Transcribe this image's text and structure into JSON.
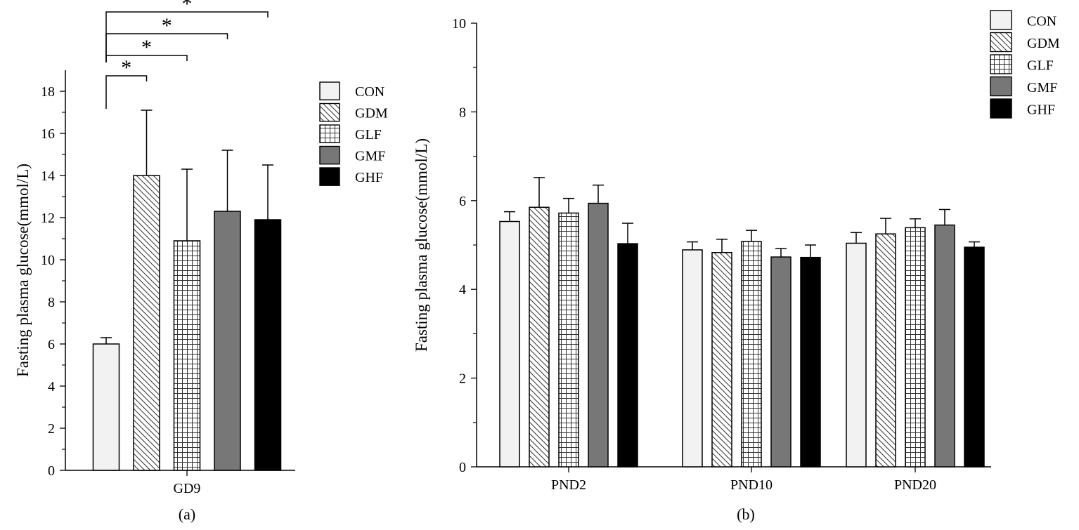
{
  "chart_data": [
    {
      "panel_label": "(a)",
      "type": "bar",
      "ylabel": "Fasting plasma glucose(mmol/L)",
      "xlabel": "",
      "ylim": [
        0,
        19
      ],
      "yticks": [
        0,
        2,
        4,
        6,
        8,
        10,
        12,
        14,
        16,
        18
      ],
      "categories": [
        "GD9"
      ],
      "legend_position": "right",
      "series": [
        {
          "name": "CON",
          "pattern": "light",
          "values": [
            6.0
          ],
          "errors": [
            0.3
          ]
        },
        {
          "name": "GDM",
          "pattern": "diagonal",
          "values": [
            14.0
          ],
          "errors": [
            3.1
          ]
        },
        {
          "name": "GLF",
          "pattern": "grid",
          "values": [
            10.9
          ],
          "errors": [
            3.4
          ]
        },
        {
          "name": "GMF",
          "pattern": "gray",
          "values": [
            12.3
          ],
          "errors": [
            2.9
          ]
        },
        {
          "name": "GHF",
          "pattern": "black",
          "values": [
            11.9
          ],
          "errors": [
            2.6
          ]
        }
      ],
      "significance": [
        {
          "from": "CON",
          "to": "GDM",
          "label": "*"
        },
        {
          "from": "CON",
          "to": "GLF",
          "label": "*"
        },
        {
          "from": "CON",
          "to": "GMF",
          "label": "*"
        },
        {
          "from": "CON",
          "to": "GHF",
          "label": "*"
        }
      ]
    },
    {
      "panel_label": "(b)",
      "type": "bar",
      "ylabel": "Fasting plasma glucose(mmol/L)",
      "xlabel": "",
      "ylim": [
        0,
        10
      ],
      "yticks": [
        0,
        2,
        4,
        6,
        8,
        10
      ],
      "categories": [
        "PND2",
        "PND10",
        "PND20"
      ],
      "legend_position": "top-right",
      "series": [
        {
          "name": "CON",
          "pattern": "light",
          "values": [
            5.53,
            4.89,
            5.04
          ],
          "errors": [
            0.22,
            0.18,
            0.24
          ]
        },
        {
          "name": "GDM",
          "pattern": "diagonal",
          "values": [
            5.85,
            4.83,
            5.25
          ],
          "errors": [
            0.67,
            0.3,
            0.35
          ]
        },
        {
          "name": "GLF",
          "pattern": "grid",
          "values": [
            5.72,
            5.08,
            5.39
          ],
          "errors": [
            0.33,
            0.25,
            0.2
          ]
        },
        {
          "name": "GMF",
          "pattern": "gray",
          "values": [
            5.94,
            4.73,
            5.45
          ],
          "errors": [
            0.41,
            0.19,
            0.35
          ]
        },
        {
          "name": "GHF",
          "pattern": "black",
          "values": [
            5.03,
            4.72,
            4.95
          ],
          "errors": [
            0.46,
            0.28,
            0.12
          ]
        }
      ]
    }
  ]
}
